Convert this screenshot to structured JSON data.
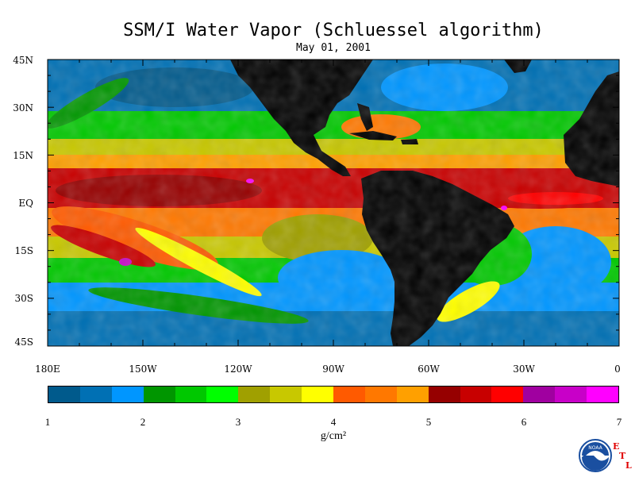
{
  "title": "SSM/I Water Vapor (Schluessel algorithm)",
  "subtitle": "May 01, 2001",
  "map": {
    "lat_labels": [
      "45N",
      "30N",
      "15N",
      "EQ",
      "15S",
      "30S",
      "45S"
    ],
    "lon_labels": [
      "180E",
      "150W",
      "120W",
      "90W",
      "60W",
      "30W",
      "0"
    ],
    "lat_range": [
      -45,
      45
    ],
    "lon_range": [
      -180,
      0
    ],
    "land_color": "#000000"
  },
  "colorbar": {
    "colors": [
      "#005a8c",
      "#0070b4",
      "#0096ff",
      "#009600",
      "#00c800",
      "#00ff00",
      "#a0a000",
      "#c8c800",
      "#ffff00",
      "#ff5a00",
      "#ff7800",
      "#ffa000",
      "#960000",
      "#c80000",
      "#ff0000",
      "#a000a0",
      "#c800c8",
      "#ff00ff"
    ],
    "labels": [
      "1",
      "2",
      "3",
      "4",
      "5",
      "6",
      "7"
    ],
    "range": [
      1,
      7
    ],
    "unit": "g/cm²"
  },
  "logo": {
    "noaa_text": "NOAA",
    "etl_letters": [
      "E",
      "T",
      "L"
    ]
  }
}
